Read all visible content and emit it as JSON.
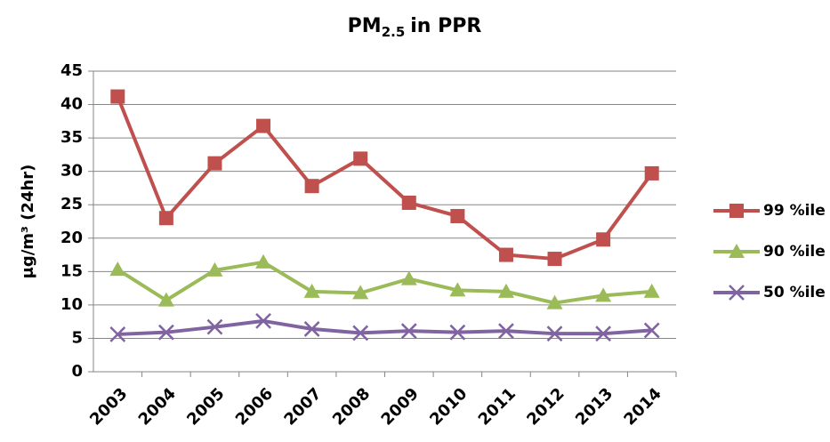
{
  "chart_data": {
    "type": "line",
    "title": {
      "main": "PM",
      "subscript": "2.5",
      "rest": "in PPR"
    },
    "y_label": "μg/m³ (24hr)",
    "categories": [
      "2003",
      "2004",
      "2005",
      "2006",
      "2007",
      "2008",
      "2009",
      "2010",
      "2011",
      "2012",
      "2013",
      "2014"
    ],
    "series": [
      {
        "name": "99 %ile",
        "color": "#c0504d",
        "marker": "square",
        "values": [
          41.2,
          23,
          31.2,
          36.8,
          27.8,
          31.9,
          25.3,
          23.3,
          17.5,
          16.9,
          19.8,
          29.7
        ]
      },
      {
        "name": "90 %ile",
        "color": "#9bbb59",
        "marker": "triangle",
        "values": [
          15.3,
          10.7,
          15.2,
          16.4,
          12,
          11.8,
          13.9,
          12.2,
          12,
          10.3,
          11.4,
          12
        ]
      },
      {
        "name": "50 %ile",
        "color": "#8064a2",
        "marker": "x",
        "values": [
          5.6,
          5.9,
          6.7,
          7.6,
          6.4,
          5.8,
          6.1,
          5.9,
          6.1,
          5.7,
          5.7,
          6.2
        ]
      }
    ],
    "ylim": [
      0,
      45
    ],
    "yticks": [
      0,
      5,
      10,
      15,
      20,
      25,
      30,
      35,
      40,
      45
    ],
    "grid": true,
    "legend": "right"
  }
}
